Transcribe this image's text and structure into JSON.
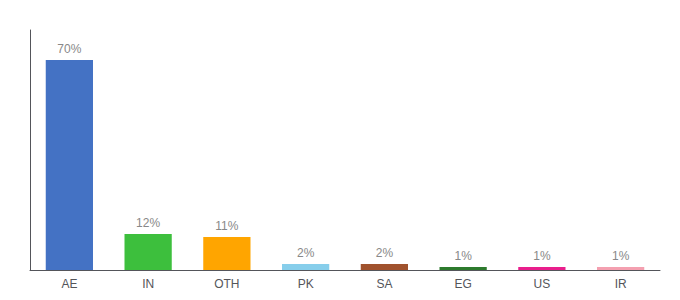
{
  "chart_data": {
    "type": "bar",
    "categories": [
      "AE",
      "IN",
      "OTH",
      "PK",
      "SA",
      "EG",
      "US",
      "IR"
    ],
    "values": [
      70,
      12,
      11,
      2,
      2,
      1,
      1,
      1
    ],
    "value_labels": [
      "70%",
      "12%",
      "11%",
      "2%",
      "2%",
      "1%",
      "1%",
      "1%"
    ],
    "data_labels": true,
    "colors": [
      "#4472C4",
      "#3DBF3D",
      "#FFA500",
      "#87CEEB",
      "#A0522D",
      "#2D7A2D",
      "#E91E8C",
      "#F4A0B0"
    ],
    "ylim": [
      0,
      80
    ],
    "grid": false,
    "tick_labels": "x"
  }
}
